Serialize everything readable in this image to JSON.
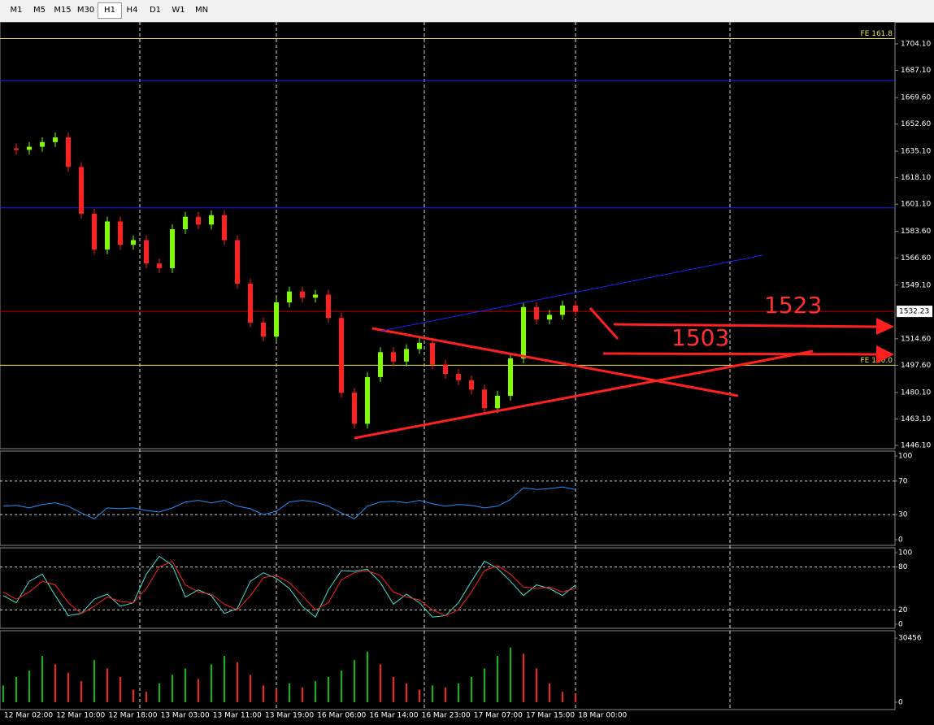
{
  "toolbar": {
    "timeframes": [
      "M1",
      "M5",
      "M15",
      "M30",
      "H1",
      "H4",
      "D1",
      "W1",
      "MN"
    ],
    "active": "H1"
  },
  "chart": {
    "price_ticks": [
      {
        "value": 1704.1,
        "label": "1704.10"
      },
      {
        "value": 1687.1,
        "label": "1687.10"
      },
      {
        "value": 1669.6,
        "label": "1669.60"
      },
      {
        "value": 1652.6,
        "label": "1652.60"
      },
      {
        "value": 1635.1,
        "label": "1635.10"
      },
      {
        "value": 1618.1,
        "label": "1618.10"
      },
      {
        "value": 1601.1,
        "label": "1601.10"
      },
      {
        "value": 1583.6,
        "label": "1583.60"
      },
      {
        "value": 1566.6,
        "label": "1566.60"
      },
      {
        "value": 1549.1,
        "label": "1549.10"
      },
      {
        "value": 1514.6,
        "label": "1514.60"
      },
      {
        "value": 1497.6,
        "label": "1497.60"
      },
      {
        "value": 1480.1,
        "label": "1480.10"
      },
      {
        "value": 1463.1,
        "label": "1463.10"
      },
      {
        "value": 1446.1,
        "label": "1446.10"
      }
    ],
    "price_range": [
      1446.1,
      1704.1
    ],
    "current_price": 1532.23,
    "levels": [
      {
        "label": "FE 161.8",
        "value": 1707.5,
        "color": "#e6e64c"
      },
      {
        "label": "FE 100.0",
        "value": 1497.6,
        "color": "#e6e64c"
      }
    ],
    "lines": [
      {
        "value": 1680.5,
        "color": "#1a1aff"
      },
      {
        "value": 1598.7,
        "color": "#1a1aff"
      }
    ],
    "annotations": [
      {
        "text": "1523"
      },
      {
        "text": "1503"
      }
    ],
    "closes": [
      1637,
      1636,
      1638,
      1641,
      1644,
      1625,
      1595,
      1572,
      1590,
      1575,
      1578,
      1563,
      1560,
      1585,
      1593,
      1588,
      1594,
      1578,
      1550,
      1525,
      1516,
      1538,
      1545,
      1541,
      1543,
      1528,
      1480,
      1460,
      1490,
      1506,
      1500,
      1508,
      1512,
      1498,
      1492,
      1488,
      1482,
      1470,
      1478,
      1502,
      1535,
      1527,
      1530,
      1536,
      1532
    ],
    "time_labels": [
      "12 Mar 02:00",
      "12 Mar 10:00",
      "12 Mar 18:00",
      "13 Mar 03:00",
      "13 Mar 11:00",
      "13 Mar 19:00",
      "16 Mar 06:00",
      "16 Mar 14:00",
      "16 Mar 23:00",
      "17 Mar 07:00",
      "17 Mar 15:00",
      "18 Mar 00:00"
    ]
  },
  "rsi": {
    "ticks": [
      100,
      70,
      30,
      0
    ],
    "levels": [
      70,
      30
    ],
    "range": [
      0,
      100
    ],
    "values": [
      40,
      41,
      38,
      42,
      44,
      40,
      32,
      25,
      38,
      37,
      38,
      35,
      33,
      38,
      45,
      47,
      44,
      47,
      40,
      37,
      30,
      34,
      45,
      47,
      45,
      40,
      32,
      25,
      40,
      45,
      46,
      44,
      47,
      43,
      40,
      42,
      41,
      38,
      40,
      48,
      62,
      60,
      61,
      63,
      60
    ]
  },
  "stochastic": {
    "ticks": [
      100,
      80,
      20,
      0
    ],
    "levels": [
      80,
      20
    ],
    "range": [
      0,
      100
    ],
    "main": [
      40,
      30,
      60,
      70,
      40,
      12,
      15,
      35,
      42,
      25,
      30,
      70,
      95,
      82,
      38,
      48,
      40,
      15,
      22,
      60,
      72,
      64,
      50,
      25,
      10,
      48,
      75,
      74,
      77,
      58,
      28,
      42,
      30,
      10,
      12,
      30,
      60,
      88,
      78,
      60,
      40,
      55,
      50,
      40,
      55
    ],
    "signal": [
      45,
      35,
      45,
      60,
      55,
      30,
      15,
      25,
      38,
      32,
      30,
      50,
      80,
      88,
      55,
      45,
      42,
      28,
      20,
      40,
      65,
      68,
      58,
      40,
      20,
      30,
      62,
      72,
      75,
      68,
      45,
      38,
      34,
      20,
      12,
      20,
      45,
      75,
      82,
      70,
      52,
      50,
      52,
      45,
      50
    ]
  },
  "volume": {
    "ticks": [
      30456,
      0
    ],
    "range": [
      0,
      30456
    ],
    "values": [
      8000,
      12000,
      15000,
      22000,
      18000,
      14000,
      10000,
      20000,
      16000,
      12000,
      6000,
      5000,
      9000,
      13000,
      16000,
      11000,
      18000,
      22000,
      19000,
      13000,
      8000,
      6000,
      9000,
      7000,
      10000,
      12000,
      15000,
      20000,
      24000,
      18000,
      12000,
      9000,
      6000,
      8000,
      7000,
      9000,
      12000,
      16000,
      22000,
      26000,
      23000,
      16000,
      9000,
      5000,
      4000
    ]
  }
}
